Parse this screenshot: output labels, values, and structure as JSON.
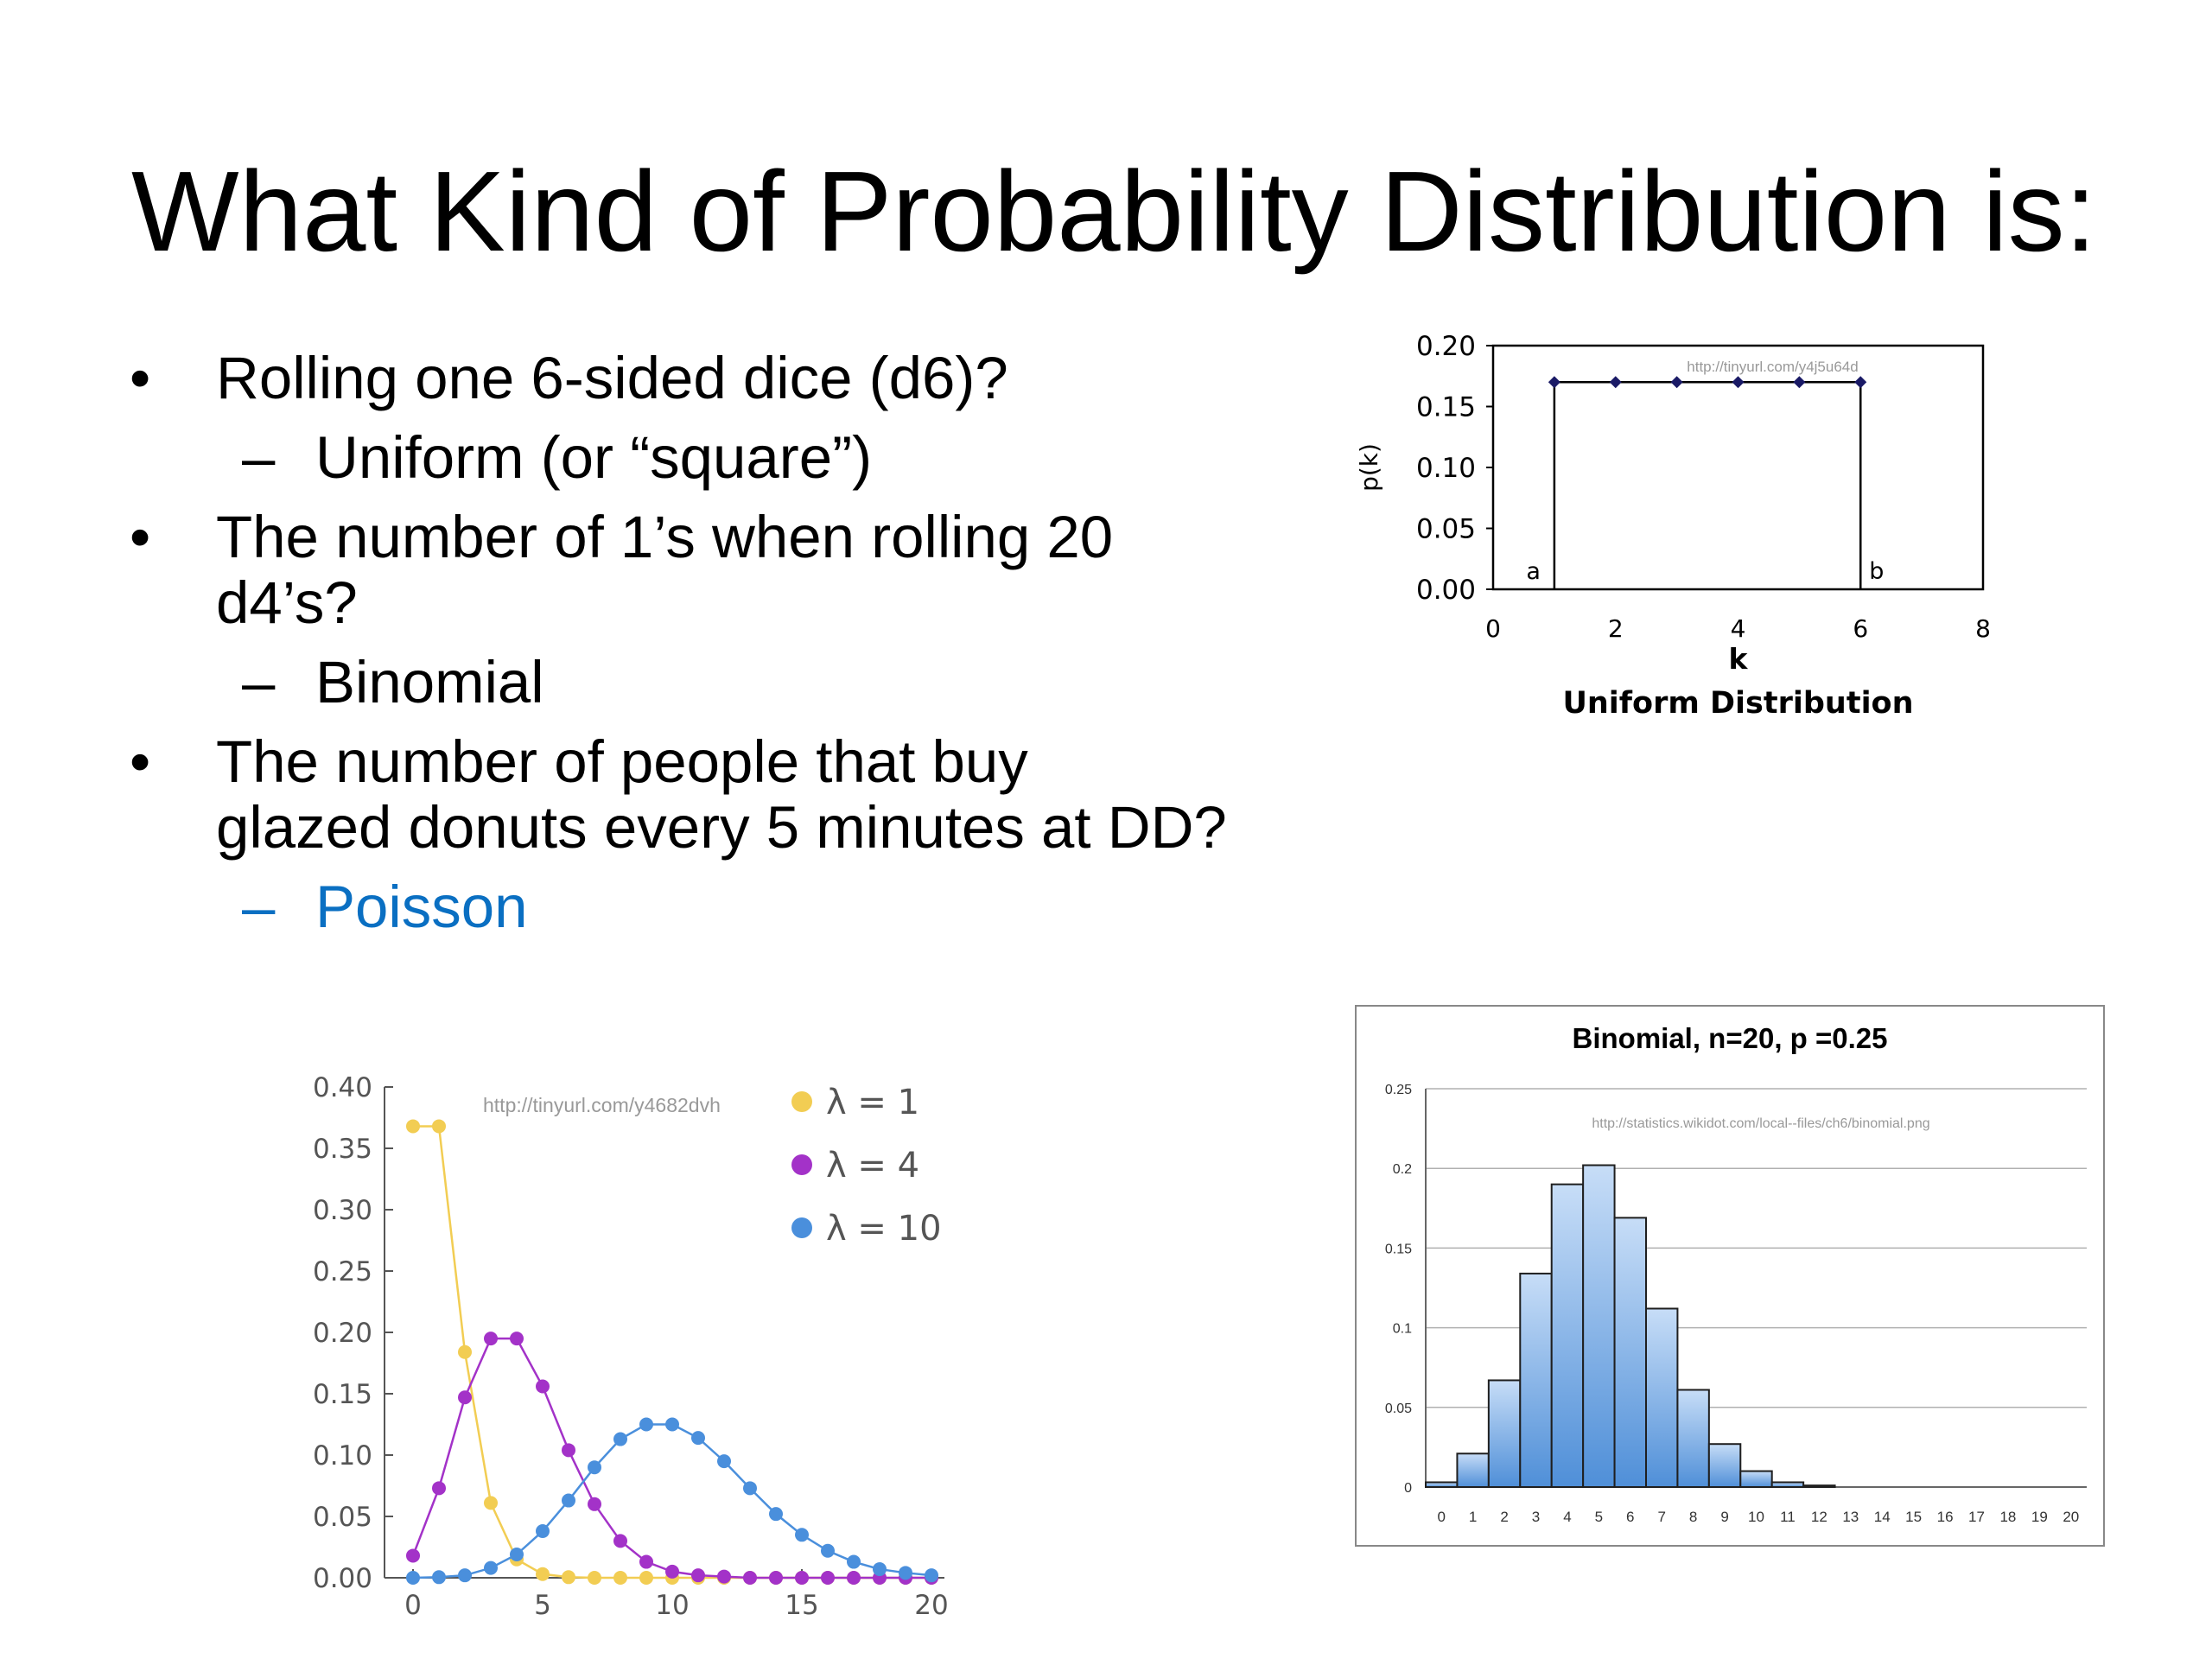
{
  "slide": {
    "title": "What Kind of Probability Distribution is:",
    "bullets": [
      {
        "text": "Rolling one 6-sided dice (d6)?",
        "answer": "Uniform (or “square”)"
      },
      {
        "text_lines": [
          "The number of 1’s when rolling 20",
          "d4’s?"
        ],
        "answer": "Binomial"
      },
      {
        "text_lines": [
          "The number of people that buy",
          "glazed donuts every 5 minutes at DD?"
        ],
        "answer": "Poisson"
      }
    ],
    "bullet_symbol": "•",
    "dash_symbol": "–",
    "accent_color": "#0a6fc2"
  },
  "chart_data": [
    {
      "type": "line",
      "title": "Uniform Distribution",
      "watermark": "http://tinyurl.com/y4j5u64d",
      "xlabel": "k",
      "ylabel": "p(k)",
      "xlim": [
        0,
        8
      ],
      "ylim": [
        0,
        0.2
      ],
      "xticks": [
        "0",
        "2",
        "4",
        "6",
        "8"
      ],
      "yticks": [
        "0.00",
        "0.05",
        "0.10",
        "0.15",
        "0.20"
      ],
      "x": [
        1,
        2,
        3,
        4,
        5,
        6
      ],
      "y": [
        0.17,
        0.17,
        0.17,
        0.17,
        0.17,
        0.17
      ],
      "annotations": [
        {
          "text": "a",
          "x": 1
        },
        {
          "text": "b",
          "x": 6
        }
      ],
      "colors": {
        "line": "#000000",
        "marker": "#1a1a66"
      }
    },
    {
      "type": "line",
      "watermark": "http://tinyurl.com/y4682dvh",
      "xlim": [
        0,
        20
      ],
      "ylim": [
        0,
        0.4
      ],
      "xticks": [
        "0",
        "5",
        "10",
        "15",
        "20"
      ],
      "yticks": [
        "0.00",
        "0.05",
        "0.10",
        "0.15",
        "0.20",
        "0.25",
        "0.30",
        "0.35",
        "0.40"
      ],
      "legend_position": "top-right",
      "x": [
        0,
        1,
        2,
        3,
        4,
        5,
        6,
        7,
        8,
        9,
        10,
        11,
        12,
        13,
        14,
        15,
        16,
        17,
        18,
        19,
        20
      ],
      "series": [
        {
          "name": "λ = 1",
          "color": "#f2cd53",
          "values": [
            0.368,
            0.368,
            0.184,
            0.061,
            0.015,
            0.003,
            0.0005,
            0,
            0,
            0,
            0,
            0,
            0,
            0,
            0,
            0,
            0,
            0,
            0,
            0,
            0
          ]
        },
        {
          "name": "λ = 4",
          "color": "#a332c8",
          "values": [
            0.018,
            0.073,
            0.147,
            0.195,
            0.195,
            0.156,
            0.104,
            0.06,
            0.03,
            0.013,
            0.005,
            0.002,
            0.001,
            0,
            0,
            0,
            0,
            0,
            0,
            0,
            0
          ]
        },
        {
          "name": "λ = 10",
          "color": "#4a8fdc",
          "values": [
            0,
            0.0005,
            0.002,
            0.008,
            0.019,
            0.038,
            0.063,
            0.09,
            0.113,
            0.125,
            0.125,
            0.114,
            0.095,
            0.073,
            0.052,
            0.035,
            0.022,
            0.013,
            0.007,
            0.004,
            0.002
          ]
        }
      ]
    },
    {
      "type": "bar",
      "title": "Binomial, n=20, p =0.25",
      "watermark": "http://statistics.wikidot.com/local--files/ch6/binomial.png",
      "categories": [
        "0",
        "1",
        "2",
        "3",
        "4",
        "5",
        "6",
        "7",
        "8",
        "9",
        "10",
        "11",
        "12",
        "13",
        "14",
        "15",
        "16",
        "17",
        "18",
        "19",
        "20"
      ],
      "values": [
        0.003,
        0.021,
        0.067,
        0.134,
        0.19,
        0.202,
        0.169,
        0.112,
        0.061,
        0.027,
        0.01,
        0.003,
        0.001,
        0,
        0,
        0,
        0,
        0,
        0,
        0,
        0
      ],
      "ylim": [
        0,
        0.25
      ],
      "yticks": [
        "0",
        "0.05",
        "0.1",
        "0.15",
        "0.2",
        "0.25"
      ],
      "grid": true,
      "colors": {
        "bar_top": "#c7ddf7",
        "bar_bottom": "#4f8fd8",
        "bar_edge": "#1f1f1f"
      }
    }
  ]
}
